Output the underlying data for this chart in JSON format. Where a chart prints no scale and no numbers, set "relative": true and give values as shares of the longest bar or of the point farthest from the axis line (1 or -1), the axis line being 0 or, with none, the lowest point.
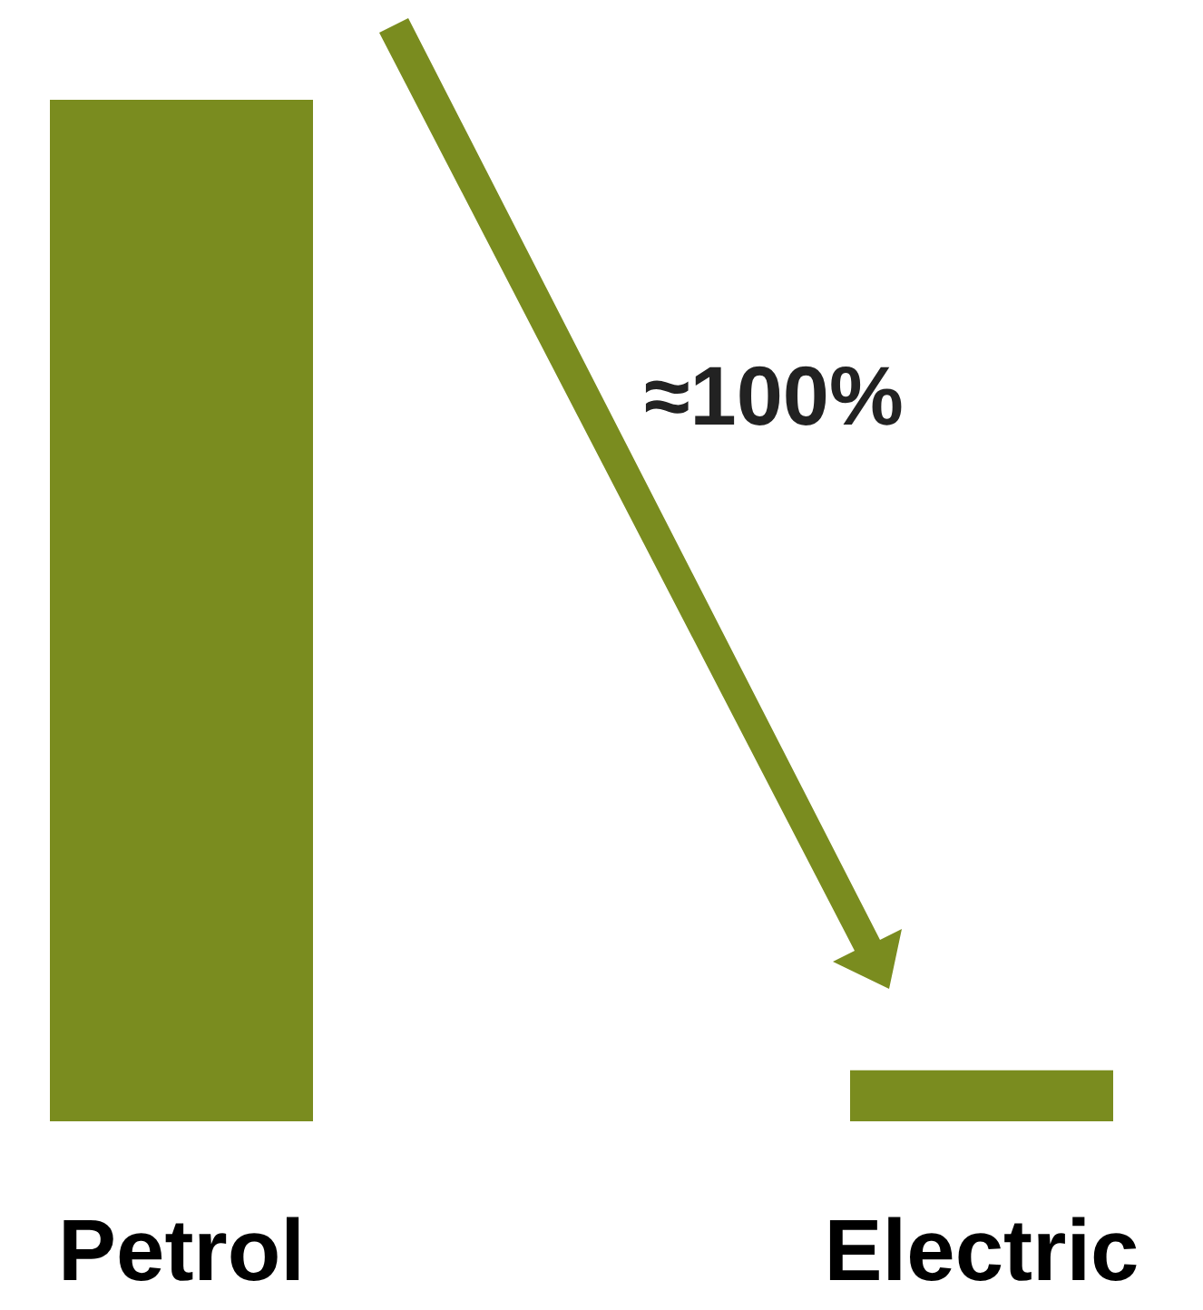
{
  "chart_data": {
    "type": "bar",
    "relative": true,
    "categories": [
      "Petrol",
      "Electric"
    ],
    "values": [
      1,
      0.05
    ],
    "color": "#7a8c1f",
    "annotations": [
      "≈100%"
    ]
  }
}
